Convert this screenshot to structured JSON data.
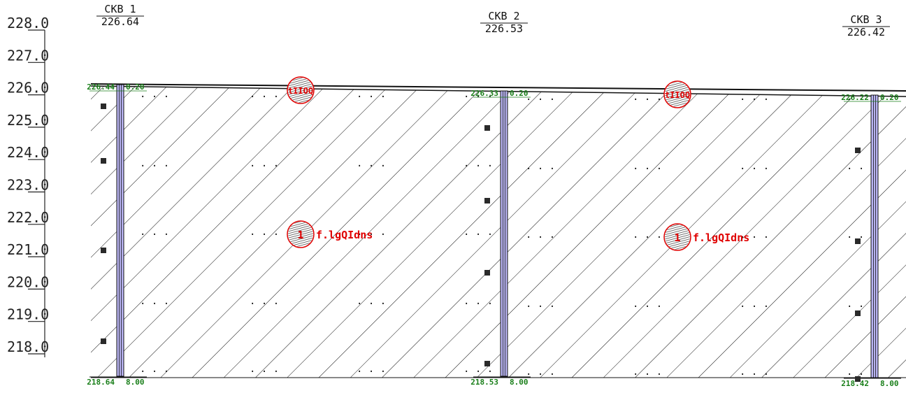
{
  "scale": {
    "labels": [
      "228.0",
      "227.0",
      "226.0",
      "225.0",
      "224.0",
      "223.0",
      "222.0",
      "221.0",
      "220.0",
      "219.0",
      "218.0"
    ]
  },
  "wells": [
    {
      "name": "CKB 1",
      "elevation": "226.64",
      "top_value": "226.44",
      "top_depth": "0.20",
      "bottom_value": "218.64",
      "bottom_depth": "8.00"
    },
    {
      "name": "CKB 2",
      "elevation": "226.53",
      "top_value": "226.33",
      "top_depth": "0.20",
      "bottom_value": "218.53",
      "bottom_depth": "8.00"
    },
    {
      "name": "CKB 3",
      "elevation": "226.42",
      "top_value": "226.22",
      "top_depth": "0.20",
      "bottom_value": "218.42",
      "bottom_depth": "8.00"
    }
  ],
  "layers": {
    "top_code": "tIIOQ",
    "lower_index": "1",
    "lower_label": "f.lgQIdns"
  },
  "colors": {
    "label_green": "#1a7f1a",
    "label_red": "#e00000",
    "well_fill": "#b9b4f2",
    "marker_fill": "#2a2a2a"
  }
}
